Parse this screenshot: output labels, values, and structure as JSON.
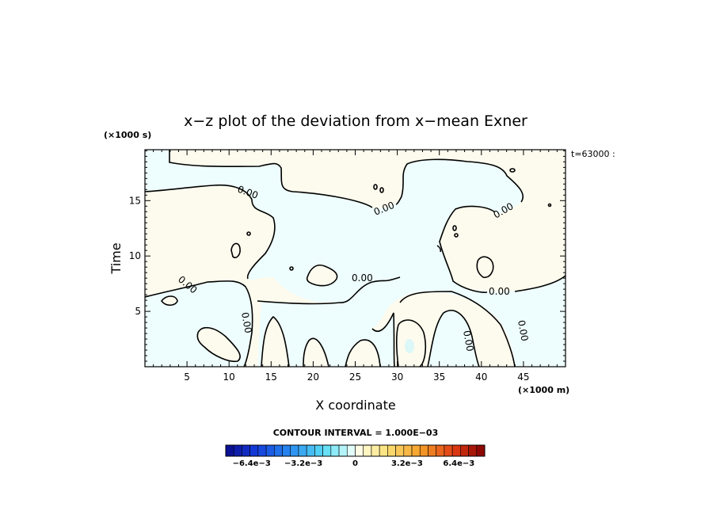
{
  "chart_data": {
    "type": "heatmap",
    "title": "x−z plot of the deviation from x−mean Exner",
    "xlabel": "X coordinate",
    "ylabel": "Time",
    "x_unit": "(×1000 m)",
    "y_unit": "(×1000 s)",
    "time_stamp": "t=63000 :",
    "xlim": [
      0,
      50
    ],
    "ylim": [
      0,
      19.6
    ],
    "x_ticks": [
      5,
      10,
      15,
      20,
      25,
      30,
      35,
      40,
      45
    ],
    "y_ticks": [
      5,
      10,
      15
    ],
    "contour_labels": [
      "0.00",
      "0.00",
      "0.00",
      "0.00",
      "0.00",
      "0.00",
      "0.00",
      "0.00"
    ],
    "contour_interval": "CONTOUR INTERVAL = 1.000E−03",
    "colorbar": {
      "ticks": [
        {
          "value": -0.0064,
          "label": "−6.4e−3"
        },
        {
          "value": -0.0032,
          "label": "−3.2e−3"
        },
        {
          "value": 0,
          "label": "0"
        },
        {
          "value": 0.0032,
          "label": "3.2e−3"
        },
        {
          "value": 0.0064,
          "label": "6.4e−3"
        }
      ],
      "range": [
        -0.008,
        0.008
      ],
      "n_levels": 32
    },
    "colors": {
      "positive_fill": "#fdfbee",
      "negative_fill": "#eefdfd",
      "weak_negative_fill": "#dcf7f7"
    }
  }
}
